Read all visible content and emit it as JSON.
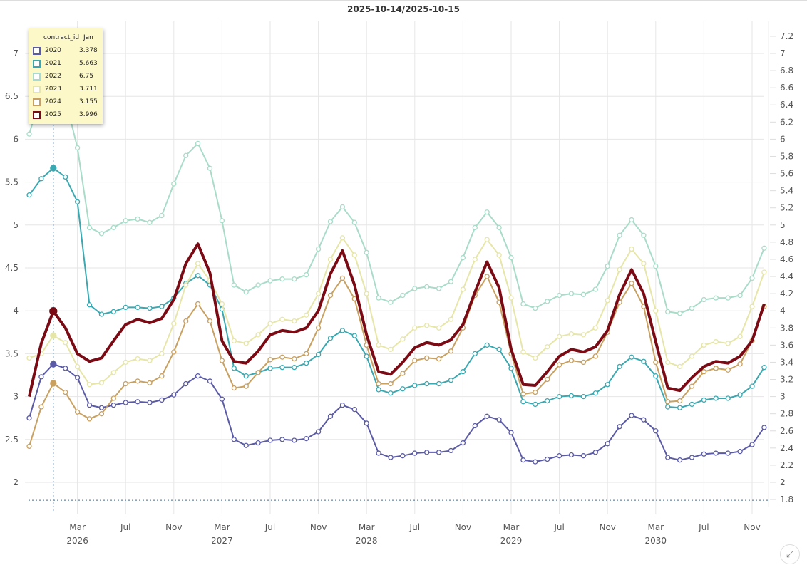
{
  "chart_data": {
    "type": "line",
    "title": "2025-10-14/2025-10-15",
    "xlabel": "",
    "ylabel": "",
    "x_start": "2025-11",
    "x_end": "2030-12",
    "ylim": [
      1.8,
      7.2
    ],
    "left_ticks": [
      "2",
      "2.5",
      "3",
      "3.5",
      "4",
      "4.5",
      "5",
      "5.5",
      "6",
      "6.5",
      "7"
    ],
    "right_ticks": [
      "1.8",
      "2",
      "2.2",
      "2.4",
      "2.6",
      "2.8",
      "3",
      "3.2",
      "3.4",
      "3.6",
      "3.8",
      "4",
      "4.2",
      "4.4",
      "4.6",
      "4.8",
      "5",
      "5.2",
      "5.4",
      "5.6",
      "5.8",
      "6",
      "6.2",
      "6.4",
      "6.6",
      "6.8",
      "7",
      "7.2"
    ],
    "x_ticks": [
      {
        "index": 4,
        "month": "Mar",
        "year": "2026"
      },
      {
        "index": 8,
        "month": "Jul"
      },
      {
        "index": 12,
        "month": "Nov"
      },
      {
        "index": 16,
        "month": "Mar",
        "year": "2027"
      },
      {
        "index": 20,
        "month": "Jul"
      },
      {
        "index": 24,
        "month": "Nov"
      },
      {
        "index": 28,
        "month": "Mar",
        "year": "2028"
      },
      {
        "index": 32,
        "month": "Jul"
      },
      {
        "index": 36,
        "month": "Nov"
      },
      {
        "index": 40,
        "month": "Mar",
        "year": "2029"
      },
      {
        "index": 44,
        "month": "Jul"
      },
      {
        "index": 48,
        "month": "Nov"
      },
      {
        "index": 52,
        "month": "Mar",
        "year": "2030"
      },
      {
        "index": 56,
        "month": "Jul"
      },
      {
        "index": 60,
        "month": "Nov"
      }
    ],
    "crosshair_index": 2,
    "grid": true,
    "series": [
      {
        "name": "2020",
        "color": "#5a5aa6",
        "values": [
          2.75,
          3.23,
          3.378,
          3.33,
          3.22,
          2.9,
          2.87,
          2.9,
          2.93,
          2.94,
          2.93,
          2.96,
          3.02,
          3.15,
          3.24,
          3.18,
          2.97,
          2.5,
          2.43,
          2.46,
          2.49,
          2.5,
          2.49,
          2.51,
          2.59,
          2.77,
          2.9,
          2.85,
          2.69,
          2.34,
          2.29,
          2.31,
          2.34,
          2.35,
          2.35,
          2.37,
          2.46,
          2.66,
          2.77,
          2.73,
          2.58,
          2.26,
          2.24,
          2.27,
          2.31,
          2.32,
          2.31,
          2.35,
          2.45,
          2.65,
          2.78,
          2.73,
          2.6,
          2.29,
          2.26,
          2.29,
          2.33,
          2.34,
          2.34,
          2.36,
          2.44,
          2.64
        ]
      },
      {
        "name": "2021",
        "color": "#3aa8b0",
        "values": [
          5.35,
          5.54,
          5.663,
          5.56,
          5.27,
          4.07,
          3.96,
          3.99,
          4.04,
          4.04,
          4.03,
          4.05,
          4.15,
          4.32,
          4.41,
          4.3,
          4.02,
          3.33,
          3.24,
          3.28,
          3.33,
          3.34,
          3.34,
          3.39,
          3.49,
          3.68,
          3.77,
          3.71,
          3.47,
          3.08,
          3.04,
          3.09,
          3.13,
          3.15,
          3.15,
          3.19,
          3.29,
          3.5,
          3.6,
          3.55,
          3.33,
          2.94,
          2.91,
          2.95,
          3.0,
          3.01,
          3.0,
          3.04,
          3.14,
          3.35,
          3.46,
          3.41,
          3.24,
          2.88,
          2.87,
          2.91,
          2.96,
          2.98,
          2.98,
          3.02,
          3.12,
          3.34
        ]
      },
      {
        "name": "2022",
        "color": "#a8dcc8",
        "values": [
          6.06,
          6.54,
          6.75,
          6.47,
          5.9,
          4.97,
          4.9,
          4.97,
          5.05,
          5.07,
          5.03,
          5.11,
          5.48,
          5.81,
          5.95,
          5.66,
          5.05,
          4.3,
          4.22,
          4.3,
          4.35,
          4.37,
          4.37,
          4.42,
          4.72,
          5.04,
          5.21,
          5.03,
          4.68,
          4.15,
          4.1,
          4.18,
          4.26,
          4.28,
          4.26,
          4.34,
          4.62,
          4.97,
          5.15,
          4.97,
          4.62,
          4.08,
          4.03,
          4.11,
          4.18,
          4.2,
          4.19,
          4.25,
          4.52,
          4.88,
          5.06,
          4.88,
          4.52,
          3.99,
          3.97,
          4.03,
          4.13,
          4.15,
          4.15,
          4.18,
          4.38,
          4.73
        ]
      },
      {
        "name": "2023",
        "color": "#e6e6a8",
        "values": [
          3.45,
          3.5,
          3.711,
          3.63,
          3.35,
          3.14,
          3.16,
          3.28,
          3.4,
          3.44,
          3.42,
          3.5,
          3.85,
          4.3,
          4.55,
          4.35,
          4.08,
          3.65,
          3.62,
          3.72,
          3.85,
          3.9,
          3.88,
          3.95,
          4.2,
          4.6,
          4.85,
          4.65,
          4.2,
          3.6,
          3.55,
          3.67,
          3.8,
          3.83,
          3.8,
          3.9,
          4.25,
          4.6,
          4.83,
          4.65,
          4.15,
          3.52,
          3.45,
          3.58,
          3.7,
          3.73,
          3.72,
          3.8,
          4.12,
          4.48,
          4.72,
          4.55,
          4.0,
          3.4,
          3.35,
          3.47,
          3.6,
          3.64,
          3.62,
          3.7,
          4.05,
          4.45
        ]
      },
      {
        "name": "2024",
        "color": "#c8a060",
        "values": [
          2.42,
          2.88,
          3.155,
          3.05,
          2.82,
          2.74,
          2.8,
          2.98,
          3.15,
          3.18,
          3.16,
          3.24,
          3.52,
          3.88,
          4.08,
          3.88,
          3.42,
          3.1,
          3.12,
          3.28,
          3.43,
          3.46,
          3.44,
          3.5,
          3.8,
          4.18,
          4.38,
          4.14,
          3.6,
          3.15,
          3.15,
          3.27,
          3.42,
          3.45,
          3.44,
          3.53,
          3.8,
          4.18,
          4.4,
          4.1,
          3.5,
          3.03,
          3.05,
          3.2,
          3.37,
          3.42,
          3.4,
          3.47,
          3.75,
          4.1,
          4.32,
          4.05,
          3.4,
          2.94,
          2.95,
          3.12,
          3.29,
          3.33,
          3.31,
          3.38,
          3.65,
          4.05
        ]
      },
      {
        "name": "2025",
        "color": "#7a0a14",
        "values": [
          3.0,
          3.62,
          3.996,
          3.8,
          3.5,
          3.41,
          3.45,
          3.65,
          3.84,
          3.9,
          3.86,
          3.91,
          4.13,
          4.55,
          4.78,
          4.44,
          3.65,
          3.41,
          3.39,
          3.53,
          3.72,
          3.77,
          3.75,
          3.8,
          4.0,
          4.43,
          4.7,
          4.3,
          3.72,
          3.29,
          3.26,
          3.4,
          3.57,
          3.63,
          3.6,
          3.66,
          3.84,
          4.22,
          4.57,
          4.27,
          3.55,
          3.14,
          3.13,
          3.29,
          3.47,
          3.55,
          3.52,
          3.58,
          3.77,
          4.19,
          4.48,
          4.2,
          3.64,
          3.1,
          3.07,
          3.22,
          3.35,
          3.41,
          3.39,
          3.47,
          3.65,
          4.08
        ]
      }
    ]
  },
  "legend": {
    "header_key": "contract_id",
    "header_value": "Jan",
    "rows": [
      {
        "name": "2020",
        "value": "3.378"
      },
      {
        "name": "2021",
        "value": "5.663"
      },
      {
        "name": "2022",
        "value": "6.75"
      },
      {
        "name": "2023",
        "value": "3.711"
      },
      {
        "name": "2024",
        "value": "3.155"
      },
      {
        "name": "2025",
        "value": "3.996"
      }
    ]
  },
  "expand_icon": "expand-icon"
}
